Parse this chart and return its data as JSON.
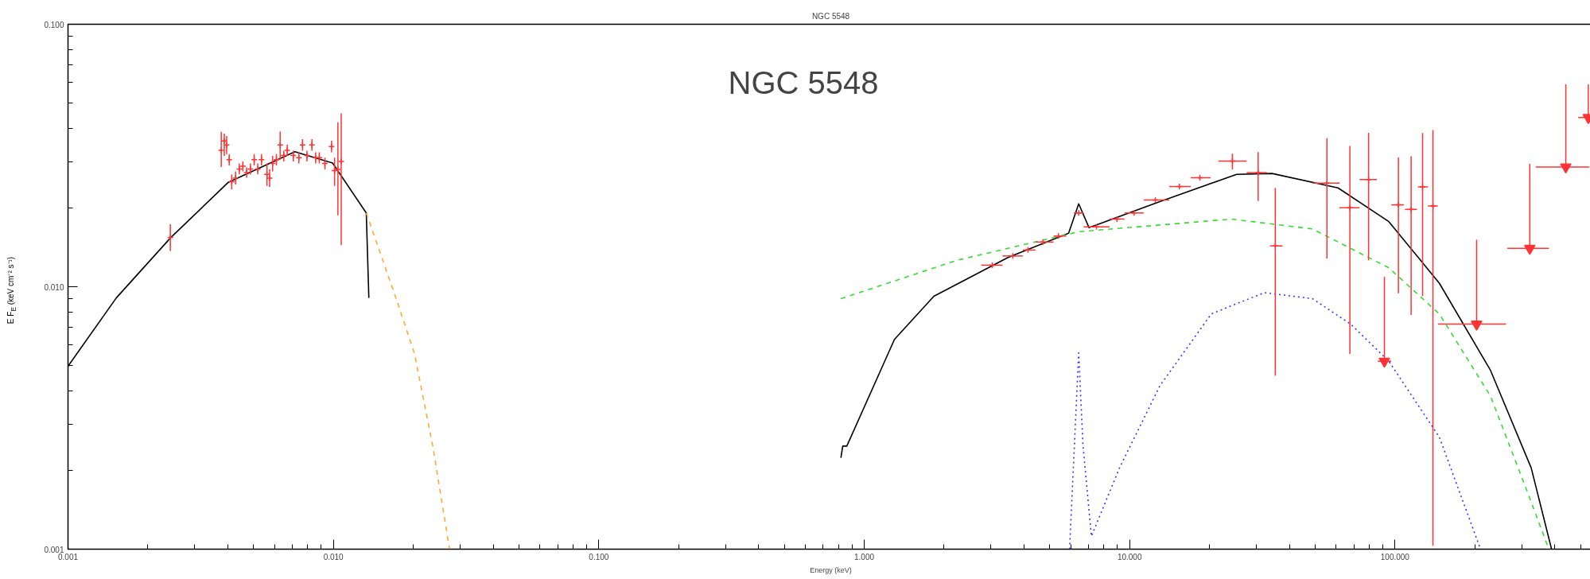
{
  "chart_data": {
    "type": "line",
    "title": "NGC 5548",
    "xlabel": "Energy (keV)",
    "ylabel": "E F$_{E}$ (keV cm⁻² s⁻¹)",
    "annotations": [
      "NGC 5548"
    ],
    "log": "xy",
    "xlim": [
      0.001,
      560
    ],
    "ylim": [
      0.001,
      0.1
    ],
    "xticks": [
      {
        "value": 0.001,
        "label": "0.001"
      },
      {
        "value": 0.01,
        "label": "0.010"
      },
      {
        "value": 0.1,
        "label": "0.100"
      },
      {
        "value": 1,
        "label": "1.000"
      },
      {
        "value": 10,
        "label": "10.000"
      },
      {
        "value": 100,
        "label": "100.000"
      }
    ],
    "yticks": [
      {
        "value": 0.001,
        "label": "0.001"
      },
      {
        "value": 0.01,
        "label": "0.010"
      },
      {
        "value": 0.1,
        "label": "0.100"
      }
    ],
    "series": [
      {
        "color": "#000000",
        "line_style": "solid",
        "x": [
          0.001,
          0.00152,
          0.00244,
          0.00402,
          0.00716,
          0.00993,
          0.0133,
          0.0136
        ],
        "values": [
          0.00498,
          0.00906,
          0.0154,
          0.025,
          0.0327,
          0.0296,
          0.0191,
          0.00906
        ]
      },
      {
        "color": "#ffaa33",
        "line_style": "dashed",
        "x": [
          0.0133,
          0.0172,
          0.0202,
          0.0237,
          0.0274
        ],
        "values": [
          0.0191,
          0.00906,
          0.00557,
          0.00246,
          0.001
        ]
      },
      {
        "color": "#000000",
        "line_style": "solid",
        "x": [
          0.817,
          0.83,
          0.86,
          1.3,
          1.83,
          3.47,
          5.89,
          6.43,
          7.03,
          13.0,
          25.3,
          34.4,
          61,
          94.8,
          147,
          229,
          326,
          389
        ],
        "values": [
          0.00223,
          0.00247,
          0.00247,
          0.0063,
          0.0092,
          0.0129,
          0.016,
          0.0207,
          0.0168,
          0.0211,
          0.0268,
          0.027,
          0.0238,
          0.0177,
          0.0103,
          0.0048,
          0.00204,
          0.001
        ]
      },
      {
        "color": "#33dd33",
        "line_style": "dashed",
        "x": [
          0.817,
          2.23,
          6.43,
          24.2,
          48.9,
          94.8,
          147,
          229,
          312,
          380
        ],
        "values": [
          0.009,
          0.0126,
          0.0162,
          0.0181,
          0.0166,
          0.0118,
          0.00787,
          0.00383,
          0.0017,
          0.001
        ]
      },
      {
        "color": "#3333ff",
        "line_style": "dotted",
        "x": [
          5.94,
          6.43,
          6.67,
          7.18,
          9.16,
          13.0,
          20.3,
          32.2,
          48.9,
          68.1,
          94.8,
          147,
          210
        ],
        "values": [
          0.001,
          0.0056,
          0.0025,
          0.00112,
          0.00204,
          0.00419,
          0.00787,
          0.0095,
          0.009,
          0.0072,
          0.0052,
          0.00267,
          0.001
        ]
      },
      {
        "type": "scatter",
        "color": "#ff3333",
        "marker": "cross",
        "x": [
          0.00243,
          0.00378,
          0.00388,
          0.00396,
          0.00405,
          0.00414,
          0.00428,
          0.00442,
          0.00456,
          0.00471,
          0.00487,
          0.00503,
          0.00519,
          0.00536,
          0.00562,
          0.00575,
          0.0059,
          0.0061,
          0.0063,
          0.0065,
          0.0067,
          0.00706,
          0.00741,
          0.00765,
          0.00795,
          0.0083,
          0.00857,
          0.00885,
          0.00929,
          0.00984,
          0.0101,
          0.0104,
          0.0107
        ],
        "values": [
          0.0154,
          0.0331,
          0.0359,
          0.0347,
          0.0305,
          0.0251,
          0.0259,
          0.0281,
          0.0288,
          0.0272,
          0.0281,
          0.0305,
          0.0281,
          0.0305,
          0.0268,
          0.0259,
          0.0295,
          0.0305,
          0.0347,
          0.0316,
          0.0331,
          0.0316,
          0.031,
          0.0347,
          0.0316,
          0.0347,
          0.031,
          0.031,
          0.0295,
          0.0342,
          0.0277,
          0.028,
          0.03
        ],
        "errors": [
          [
            0.0137,
            0.0173
          ],
          [
            0.0286,
            0.0389
          ],
          [
            0.0315,
            0.0383
          ],
          [
            0.032,
            0.0375
          ],
          [
            0.029,
            0.032
          ],
          [
            0.0235,
            0.0268
          ],
          [
            0.0245,
            0.0275
          ],
          [
            0.0268,
            0.0295
          ],
          [
            0.0275,
            0.03
          ],
          [
            0.026,
            0.0285
          ],
          [
            0.0268,
            0.0295
          ],
          [
            0.029,
            0.032
          ],
          [
            0.0268,
            0.0295
          ],
          [
            0.029,
            0.032
          ],
          [
            0.0242,
            0.0295
          ],
          [
            0.024,
            0.028
          ],
          [
            0.0275,
            0.0315
          ],
          [
            0.029,
            0.032
          ],
          [
            0.0305,
            0.039
          ],
          [
            0.03,
            0.033
          ],
          [
            0.0315,
            0.0348
          ],
          [
            0.03,
            0.033
          ],
          [
            0.0295,
            0.0325
          ],
          [
            0.033,
            0.0365
          ],
          [
            0.03,
            0.033
          ],
          [
            0.033,
            0.0365
          ],
          [
            0.0295,
            0.0325
          ],
          [
            0.0295,
            0.0325
          ],
          [
            0.028,
            0.031
          ],
          [
            0.0325,
            0.036
          ],
          [
            0.0242,
            0.031
          ],
          [
            0.0187,
            0.0423
          ],
          [
            0.0144,
            0.0458
          ]
        ]
      },
      {
        "type": "scatter",
        "color": "#ff3333",
        "marker": "cross",
        "x": [
          3.04,
          3.63,
          4.14,
          4.72,
          5.39,
          6.43,
          7.5,
          8.96,
          10.4,
          12.5,
          15.4,
          18.4,
          24.4,
          30.5,
          35.4,
          55.4,
          67.6,
          79.5,
          103,
          115,
          127,
          139
        ],
        "values": [
          0.01208,
          0.0131,
          0.0138,
          0.0148,
          0.0156,
          0.0191,
          0.0169,
          0.0181,
          0.0191,
          0.0214,
          0.0241,
          0.026,
          0.0301,
          0.0272,
          0.0143,
          0.0248,
          0.02,
          0.0256,
          0.0205,
          0.0197,
          0.024,
          0.0203
        ],
        "xerrors": [
          [
            2.76,
            3.32
          ],
          [
            3.32,
            3.96
          ],
          [
            3.96,
            4.42
          ],
          [
            4.42,
            5.17
          ],
          [
            5.17,
            5.77
          ],
          [
            6.16,
            6.71
          ],
          [
            6.71,
            8.4
          ],
          [
            8.4,
            9.57
          ],
          [
            9.57,
            11.3
          ],
          [
            11.3,
            14.1
          ],
          [
            14.1,
            17.0
          ],
          [
            17.0,
            20.2
          ],
          [
            21.6,
            27.6
          ],
          [
            27.6,
            32.9
          ],
          [
            33.8,
            37.7
          ],
          [
            48.9,
            61.9
          ],
          [
            61.7,
            73.5
          ],
          [
            73.5,
            85.4
          ],
          [
            96.8,
            108
          ],
          [
            109,
            121
          ],
          [
            122,
            133
          ],
          [
            133,
            145
          ]
        ],
        "errors": [
          null,
          null,
          null,
          null,
          null,
          null,
          null,
          null,
          null,
          null,
          null,
          null,
          [
            0.028,
            0.0321
          ],
          [
            0.0212,
            0.0326
          ],
          [
            0.00458,
            0.0238
          ],
          [
            0.0128,
            0.0368
          ],
          [
            0.00555,
            0.0344
          ],
          [
            0.0126,
            0.0386
          ],
          [
            0.00944,
            0.0311
          ],
          [
            0.0078,
            0.0314
          ],
          [
            0.00922,
            0.0385
          ],
          [
            0.00103,
            0.0395
          ]
        ]
      },
      {
        "type": "scatter",
        "color": "#ff3333",
        "marker": "triangle",
        "x": [
          91.2,
          203,
          322,
          440,
          535
        ],
        "values": [
          0.0052,
          0.0072,
          0.014,
          0.0286,
          0.0441
        ],
        "xerrors": [
          [
            86.1,
            96.8
          ],
          [
            145,
            262
          ],
          [
            265,
            380
          ],
          [
            339,
            540
          ],
          [
            490,
            560
          ]
        ],
        "errors": [
          [
            0.0052,
            0.0109
          ],
          [
            0.0072,
            0.0151
          ],
          [
            0.014,
            0.0294
          ],
          [
            0.0286,
            0.059
          ],
          [
            0.0441,
            0.059
          ]
        ]
      }
    ]
  }
}
